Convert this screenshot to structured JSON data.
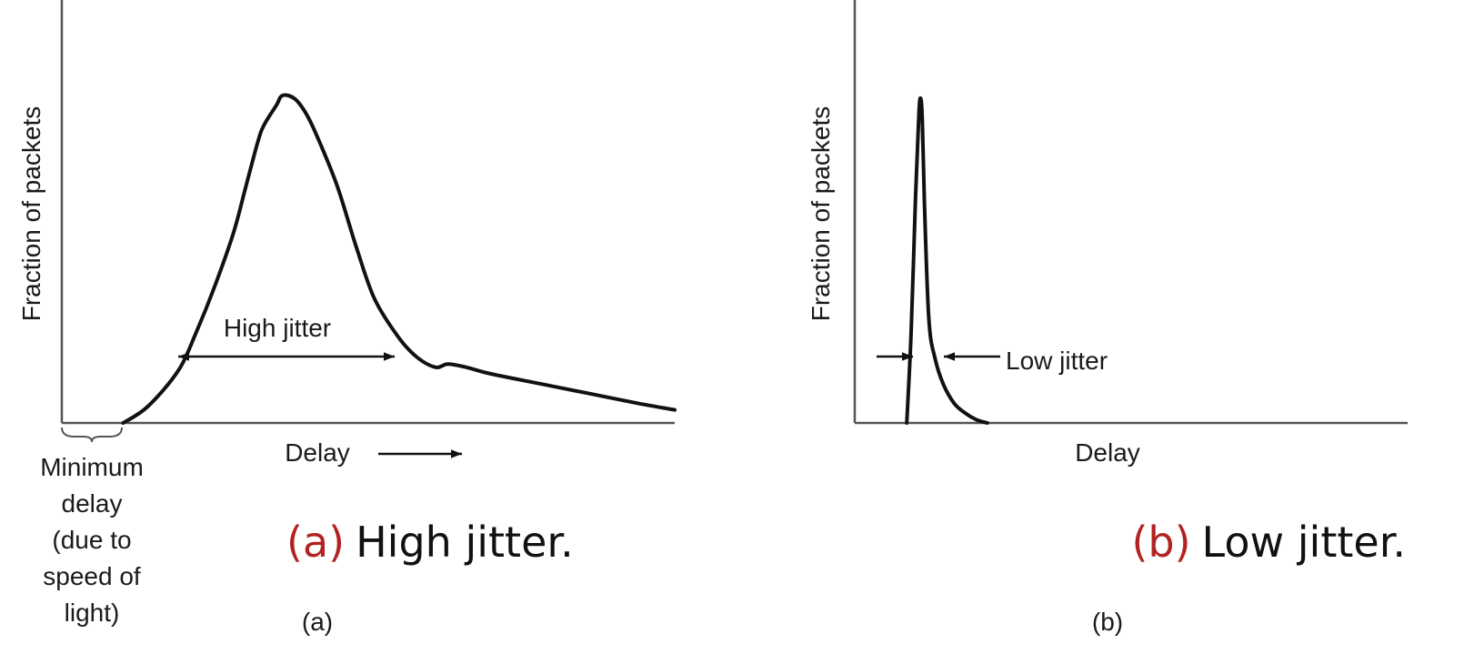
{
  "chart_data": [
    {
      "type": "line",
      "panel_label": "(a)",
      "caption_letter": "(a)",
      "caption_text": "High jitter.",
      "xlabel": "Delay",
      "ylabel": "Fraction of packets",
      "annotations": {
        "width_label": "High jitter",
        "min_delay_lines": [
          "Minimum",
          "delay",
          "(due to",
          "speed of",
          "light)"
        ]
      },
      "xlim": [
        0,
        100
      ],
      "ylim": [
        0,
        100
      ],
      "series": [
        {
          "x": [
            10,
            14,
            19,
            22,
            25,
            28,
            30,
            32,
            33,
            35,
            36,
            38,
            40,
            42,
            45,
            48,
            51,
            55,
            58,
            61,
            63,
            66,
            70,
            78,
            86,
            94,
            100
          ],
          "y": [
            0,
            5,
            16,
            28,
            42,
            58,
            72,
            86,
            91,
            97,
            100,
            99,
            94,
            86,
            72,
            54,
            38,
            26,
            20,
            17,
            18,
            17,
            15,
            12,
            9,
            6,
            4
          ]
        }
      ]
    },
    {
      "type": "line",
      "panel_label": "(b)",
      "caption_letter": "(b)",
      "caption_text": "Low jitter.",
      "xlabel": "Delay",
      "ylabel": "Fraction of packets",
      "annotations": {
        "width_label": "Low jitter"
      },
      "xlim": [
        0,
        100
      ],
      "ylim": [
        0,
        100
      ],
      "series": [
        {
          "x": [
            9.4,
            10.2,
            11.0,
            11.6,
            11.9,
            12.2,
            12.6,
            13.4,
            14.5,
            16.0,
            18.0,
            20.0,
            22.0,
            24.0
          ],
          "y": [
            0,
            28,
            70,
            95,
            100,
            94,
            68,
            32,
            20,
            12,
            6,
            3,
            1,
            0
          ]
        }
      ]
    }
  ]
}
